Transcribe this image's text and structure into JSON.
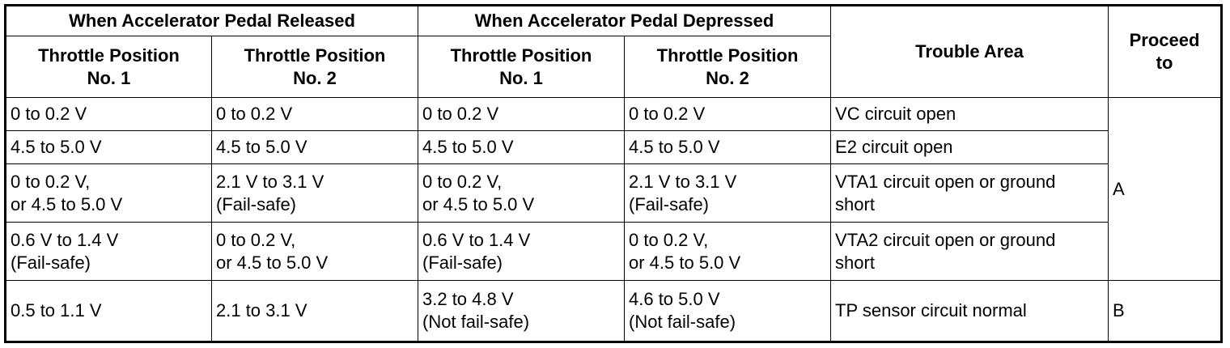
{
  "header": {
    "released": "When Accelerator Pedal Released",
    "depressed": "When Accelerator Pedal Depressed",
    "tp1": "Throttle Position\nNo. 1",
    "tp2": "Throttle Position\nNo. 2",
    "trouble_area": "Trouble Area",
    "proceed_to": "Proceed\nto"
  },
  "rows": [
    {
      "rel_tp1": "0 to 0.2 V",
      "rel_tp2": "0 to 0.2 V",
      "dep_tp1": "0 to 0.2 V",
      "dep_tp2": "0 to 0.2 V",
      "trouble": "VC circuit open"
    },
    {
      "rel_tp1": "4.5 to 5.0 V",
      "rel_tp2": "4.5 to 5.0 V",
      "dep_tp1": "4.5 to 5.0 V",
      "dep_tp2": "4.5 to 5.0 V",
      "trouble": "E2 circuit open"
    },
    {
      "rel_tp1": "0 to 0.2 V,\nor 4.5 to 5.0 V",
      "rel_tp2": "2.1 V to 3.1 V\n(Fail-safe)",
      "dep_tp1": "0 to 0.2 V,\nor 4.5 to 5.0 V",
      "dep_tp2": "2.1 V to 3.1 V\n(Fail-safe)",
      "trouble": "VTA1 circuit open or ground\nshort"
    },
    {
      "rel_tp1": "0.6 V to 1.4 V\n(Fail-safe)",
      "rel_tp2": "0 to 0.2 V,\nor 4.5 to 5.0 V",
      "dep_tp1": "0.6 V to 1.4 V\n(Fail-safe)",
      "dep_tp2": "0 to 0.2 V,\nor 4.5 to 5.0 V",
      "trouble": "VTA2 circuit open or ground\nshort"
    },
    {
      "rel_tp1": "0.5 to 1.1 V",
      "rel_tp2": "2.1 to 3.1 V",
      "dep_tp1": "3.2 to 4.8 V\n(Not fail-safe)",
      "dep_tp2": "4.6 to 5.0 V\n(Not fail-safe)",
      "trouble": "TP sensor circuit normal"
    }
  ],
  "proceed": [
    "A",
    "B"
  ]
}
